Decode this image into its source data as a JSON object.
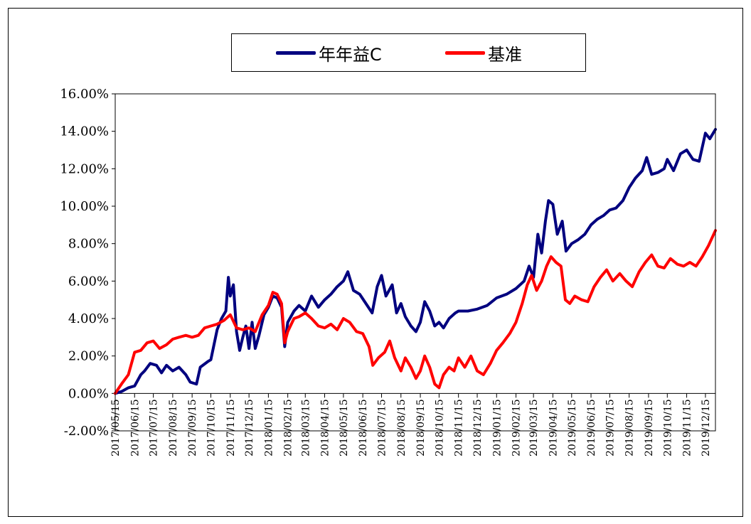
{
  "chart_data": {
    "type": "line",
    "title": "",
    "xlabel": "",
    "ylabel": "",
    "ylim": [
      -0.02,
      0.16
    ],
    "y_ticks": [
      -0.02,
      0.0,
      0.02,
      0.04,
      0.06,
      0.08,
      0.1,
      0.12,
      0.14,
      0.16
    ],
    "y_tick_labels": [
      "-2.00%",
      "0.00%",
      "2.00%",
      "4.00%",
      "6.00%",
      "8.00%",
      "10.00%",
      "12.00%",
      "14.00%",
      "16.00%"
    ],
    "x_tick_labels": [
      "2017/05/15",
      "2017/06/15",
      "2017/07/15",
      "2017/08/15",
      "2017/09/15",
      "2017/10/15",
      "2017/11/15",
      "2017/12/15",
      "2018/01/15",
      "2018/02/15",
      "2018/03/15",
      "2018/04/15",
      "2018/05/15",
      "2018/06/15",
      "2018/07/15",
      "2018/08/15",
      "2018/09/15",
      "2018/10/15",
      "2018/11/15",
      "2018/12/15",
      "2019/01/15",
      "2019/02/15",
      "2019/03/15",
      "2019/04/15",
      "2019/05/15",
      "2019/06/15",
      "2019/07/15",
      "2019/08/15",
      "2019/09/15",
      "2019/10/15",
      "2019/11/15",
      "2019/12/15"
    ],
    "x_range": [
      "2017/05/15",
      "2019/12/31"
    ],
    "grid": false,
    "legend_position": "top",
    "series": [
      {
        "name": "年年益C",
        "color": "#00007f",
        "points": [
          [
            "2017/05/15",
            0.0
          ],
          [
            "2017/05/25",
            0.001
          ],
          [
            "2017/06/05",
            0.003
          ],
          [
            "2017/06/15",
            0.004
          ],
          [
            "2017/06/25",
            0.01
          ],
          [
            "2017/07/01",
            0.012
          ],
          [
            "2017/07/10",
            0.016
          ],
          [
            "2017/07/20",
            0.015
          ],
          [
            "2017/07/28",
            0.011
          ],
          [
            "2017/08/05",
            0.015
          ],
          [
            "2017/08/15",
            0.012
          ],
          [
            "2017/08/25",
            0.014
          ],
          [
            "2017/09/05",
            0.01
          ],
          [
            "2017/09/12",
            0.006
          ],
          [
            "2017/09/22",
            0.005
          ],
          [
            "2017/09/28",
            0.014
          ],
          [
            "2017/10/10",
            0.017
          ],
          [
            "2017/10/15",
            0.018
          ],
          [
            "2017/10/25",
            0.034
          ],
          [
            "2017/11/01",
            0.04
          ],
          [
            "2017/11/08",
            0.044
          ],
          [
            "2017/11/12",
            0.062
          ],
          [
            "2017/11/15",
            0.052
          ],
          [
            "2017/11/20",
            0.058
          ],
          [
            "2017/11/25",
            0.033
          ],
          [
            "2017/11/30",
            0.023
          ],
          [
            "2017/12/05",
            0.03
          ],
          [
            "2017/12/10",
            0.036
          ],
          [
            "2017/12/15",
            0.024
          ],
          [
            "2017/12/20",
            0.038
          ],
          [
            "2017/12/25",
            0.024
          ],
          [
            "2017/12/31",
            0.031
          ],
          [
            "2018/01/08",
            0.042
          ],
          [
            "2018/01/15",
            0.046
          ],
          [
            "2018/01/22",
            0.052
          ],
          [
            "2018/01/29",
            0.051
          ],
          [
            "2018/02/05",
            0.046
          ],
          [
            "2018/02/10",
            0.025
          ],
          [
            "2018/02/15",
            0.038
          ],
          [
            "2018/02/25",
            0.044
          ],
          [
            "2018/03/05",
            0.047
          ],
          [
            "2018/03/15",
            0.044
          ],
          [
            "2018/03/25",
            0.052
          ],
          [
            "2018/04/05",
            0.046
          ],
          [
            "2018/04/15",
            0.05
          ],
          [
            "2018/04/25",
            0.053
          ],
          [
            "2018/05/05",
            0.057
          ],
          [
            "2018/05/15",
            0.06
          ],
          [
            "2018/05/22",
            0.065
          ],
          [
            "2018/05/31",
            0.055
          ],
          [
            "2018/06/10",
            0.053
          ],
          [
            "2018/06/20",
            0.048
          ],
          [
            "2018/06/30",
            0.043
          ],
          [
            "2018/07/08",
            0.057
          ],
          [
            "2018/07/15",
            0.063
          ],
          [
            "2018/07/22",
            0.052
          ],
          [
            "2018/08/01",
            0.058
          ],
          [
            "2018/08/08",
            0.043
          ],
          [
            "2018/08/15",
            0.048
          ],
          [
            "2018/08/22",
            0.041
          ],
          [
            "2018/08/31",
            0.036
          ],
          [
            "2018/09/08",
            0.033
          ],
          [
            "2018/09/15",
            0.038
          ],
          [
            "2018/09/22",
            0.049
          ],
          [
            "2018/09/30",
            0.044
          ],
          [
            "2018/10/08",
            0.036
          ],
          [
            "2018/10/15",
            0.038
          ],
          [
            "2018/10/22",
            0.035
          ],
          [
            "2018/10/31",
            0.04
          ],
          [
            "2018/11/10",
            0.043
          ],
          [
            "2018/11/15",
            0.044
          ],
          [
            "2018/11/30",
            0.044
          ],
          [
            "2018/12/15",
            0.045
          ],
          [
            "2018/12/31",
            0.047
          ],
          [
            "2019/01/15",
            0.051
          ],
          [
            "2019/01/31",
            0.053
          ],
          [
            "2019/02/15",
            0.056
          ],
          [
            "2019/02/28",
            0.06
          ],
          [
            "2019/03/08",
            0.068
          ],
          [
            "2019/03/15",
            0.062
          ],
          [
            "2019/03/22",
            0.085
          ],
          [
            "2019/03/28",
            0.075
          ],
          [
            "2019/04/03",
            0.092
          ],
          [
            "2019/04/08",
            0.103
          ],
          [
            "2019/04/15",
            0.101
          ],
          [
            "2019/04/22",
            0.085
          ],
          [
            "2019/04/30",
            0.092
          ],
          [
            "2019/05/06",
            0.076
          ],
          [
            "2019/05/15",
            0.08
          ],
          [
            "2019/05/25",
            0.082
          ],
          [
            "2019/06/05",
            0.085
          ],
          [
            "2019/06/15",
            0.09
          ],
          [
            "2019/06/25",
            0.093
          ],
          [
            "2019/07/05",
            0.095
          ],
          [
            "2019/07/15",
            0.098
          ],
          [
            "2019/07/25",
            0.099
          ],
          [
            "2019/08/05",
            0.103
          ],
          [
            "2019/08/15",
            0.11
          ],
          [
            "2019/08/25",
            0.115
          ],
          [
            "2019/09/05",
            0.119
          ],
          [
            "2019/09/12",
            0.126
          ],
          [
            "2019/09/20",
            0.117
          ],
          [
            "2019/09/30",
            0.118
          ],
          [
            "2019/10/10",
            0.12
          ],
          [
            "2019/10/15",
            0.125
          ],
          [
            "2019/10/25",
            0.119
          ],
          [
            "2019/11/05",
            0.128
          ],
          [
            "2019/11/15",
            0.13
          ],
          [
            "2019/11/25",
            0.125
          ],
          [
            "2019/12/05",
            0.124
          ],
          [
            "2019/12/15",
            0.139
          ],
          [
            "2019/12/22",
            0.136
          ],
          [
            "2019/12/31",
            0.141
          ]
        ]
      },
      {
        "name": "基准",
        "color": "#ff0000",
        "points": [
          [
            "2017/05/15",
            0.0
          ],
          [
            "2017/05/25",
            0.005
          ],
          [
            "2017/06/05",
            0.01
          ],
          [
            "2017/06/15",
            0.022
          ],
          [
            "2017/06/25",
            0.023
          ],
          [
            "2017/07/05",
            0.027
          ],
          [
            "2017/07/15",
            0.028
          ],
          [
            "2017/07/25",
            0.024
          ],
          [
            "2017/08/05",
            0.026
          ],
          [
            "2017/08/15",
            0.029
          ],
          [
            "2017/08/25",
            0.03
          ],
          [
            "2017/09/05",
            0.031
          ],
          [
            "2017/09/15",
            0.03
          ],
          [
            "2017/09/25",
            0.031
          ],
          [
            "2017/10/05",
            0.035
          ],
          [
            "2017/10/15",
            0.036
          ],
          [
            "2017/10/25",
            0.037
          ],
          [
            "2017/11/05",
            0.039
          ],
          [
            "2017/11/15",
            0.042
          ],
          [
            "2017/11/25",
            0.035
          ],
          [
            "2017/12/05",
            0.034
          ],
          [
            "2017/12/15",
            0.035
          ],
          [
            "2017/12/25",
            0.033
          ],
          [
            "2018/01/05",
            0.042
          ],
          [
            "2018/01/15",
            0.047
          ],
          [
            "2018/01/22",
            0.054
          ],
          [
            "2018/01/29",
            0.053
          ],
          [
            "2018/02/05",
            0.048
          ],
          [
            "2018/02/10",
            0.027
          ],
          [
            "2018/02/15",
            0.033
          ],
          [
            "2018/02/25",
            0.04
          ],
          [
            "2018/03/05",
            0.041
          ],
          [
            "2018/03/15",
            0.043
          ],
          [
            "2018/03/25",
            0.04
          ],
          [
            "2018/04/05",
            0.036
          ],
          [
            "2018/04/15",
            0.035
          ],
          [
            "2018/04/25",
            0.037
          ],
          [
            "2018/05/05",
            0.034
          ],
          [
            "2018/05/15",
            0.04
          ],
          [
            "2018/05/25",
            0.038
          ],
          [
            "2018/06/05",
            0.033
          ],
          [
            "2018/06/15",
            0.032
          ],
          [
            "2018/06/25",
            0.025
          ],
          [
            "2018/07/01",
            0.015
          ],
          [
            "2018/07/10",
            0.019
          ],
          [
            "2018/07/20",
            0.022
          ],
          [
            "2018/07/28",
            0.028
          ],
          [
            "2018/08/05",
            0.019
          ],
          [
            "2018/08/15",
            0.012
          ],
          [
            "2018/08/22",
            0.019
          ],
          [
            "2018/08/31",
            0.014
          ],
          [
            "2018/09/08",
            0.008
          ],
          [
            "2018/09/15",
            0.012
          ],
          [
            "2018/09/22",
            0.02
          ],
          [
            "2018/09/30",
            0.014
          ],
          [
            "2018/10/08",
            0.005
          ],
          [
            "2018/10/15",
            0.003
          ],
          [
            "2018/10/22",
            0.01
          ],
          [
            "2018/10/31",
            0.014
          ],
          [
            "2018/11/08",
            0.012
          ],
          [
            "2018/11/15",
            0.019
          ],
          [
            "2018/11/25",
            0.014
          ],
          [
            "2018/12/05",
            0.02
          ],
          [
            "2018/12/15",
            0.012
          ],
          [
            "2018/12/25",
            0.01
          ],
          [
            "2019/01/05",
            0.016
          ],
          [
            "2019/01/15",
            0.023
          ],
          [
            "2019/01/25",
            0.027
          ],
          [
            "2019/02/05",
            0.032
          ],
          [
            "2019/02/15",
            0.038
          ],
          [
            "2019/02/25",
            0.048
          ],
          [
            "2019/03/05",
            0.058
          ],
          [
            "2019/03/12",
            0.063
          ],
          [
            "2019/03/20",
            0.055
          ],
          [
            "2019/03/28",
            0.06
          ],
          [
            "2019/04/05",
            0.068
          ],
          [
            "2019/04/12",
            0.073
          ],
          [
            "2019/04/20",
            0.07
          ],
          [
            "2019/04/28",
            0.068
          ],
          [
            "2019/05/05",
            0.05
          ],
          [
            "2019/05/12",
            0.048
          ],
          [
            "2019/05/20",
            0.052
          ],
          [
            "2019/05/31",
            0.05
          ],
          [
            "2019/06/10",
            0.049
          ],
          [
            "2019/06/20",
            0.057
          ],
          [
            "2019/06/30",
            0.062
          ],
          [
            "2019/07/10",
            0.066
          ],
          [
            "2019/07/20",
            0.06
          ],
          [
            "2019/07/31",
            0.064
          ],
          [
            "2019/08/10",
            0.06
          ],
          [
            "2019/08/20",
            0.057
          ],
          [
            "2019/08/31",
            0.065
          ],
          [
            "2019/09/10",
            0.07
          ],
          [
            "2019/09/20",
            0.074
          ],
          [
            "2019/09/30",
            0.068
          ],
          [
            "2019/10/10",
            0.067
          ],
          [
            "2019/10/20",
            0.072
          ],
          [
            "2019/10/31",
            0.069
          ],
          [
            "2019/11/10",
            0.068
          ],
          [
            "2019/11/20",
            0.07
          ],
          [
            "2019/11/30",
            0.068
          ],
          [
            "2019/12/10",
            0.073
          ],
          [
            "2019/12/20",
            0.079
          ],
          [
            "2019/12/31",
            0.087
          ]
        ]
      }
    ]
  }
}
